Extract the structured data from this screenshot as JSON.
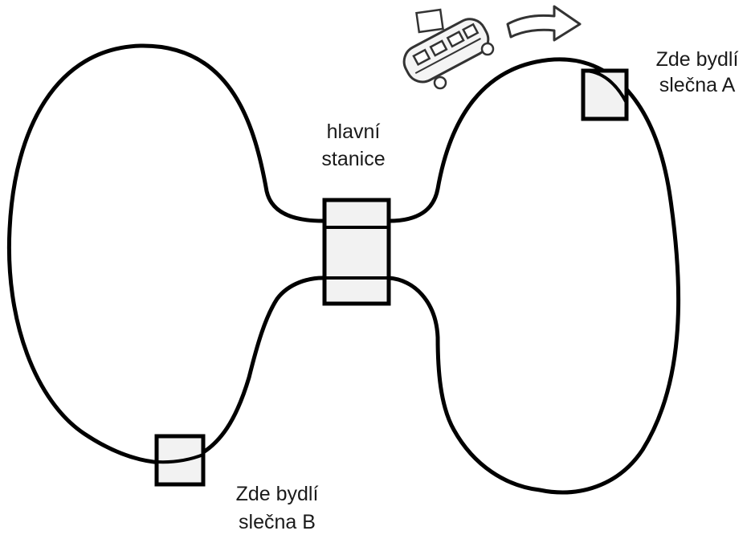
{
  "diagram": {
    "station_label_line1": "hlavní",
    "station_label_line2": "stanice",
    "stop_a_label_line1": "Zde bydlí",
    "stop_a_label_line2": "slečna A",
    "stop_b_label_line1": "Zde bydlí",
    "stop_b_label_line2": "slečna B",
    "track_color": "#000000",
    "box_fill": "#f2f2f2",
    "icons": [
      "bus-icon",
      "direction-arrow-icon"
    ]
  }
}
